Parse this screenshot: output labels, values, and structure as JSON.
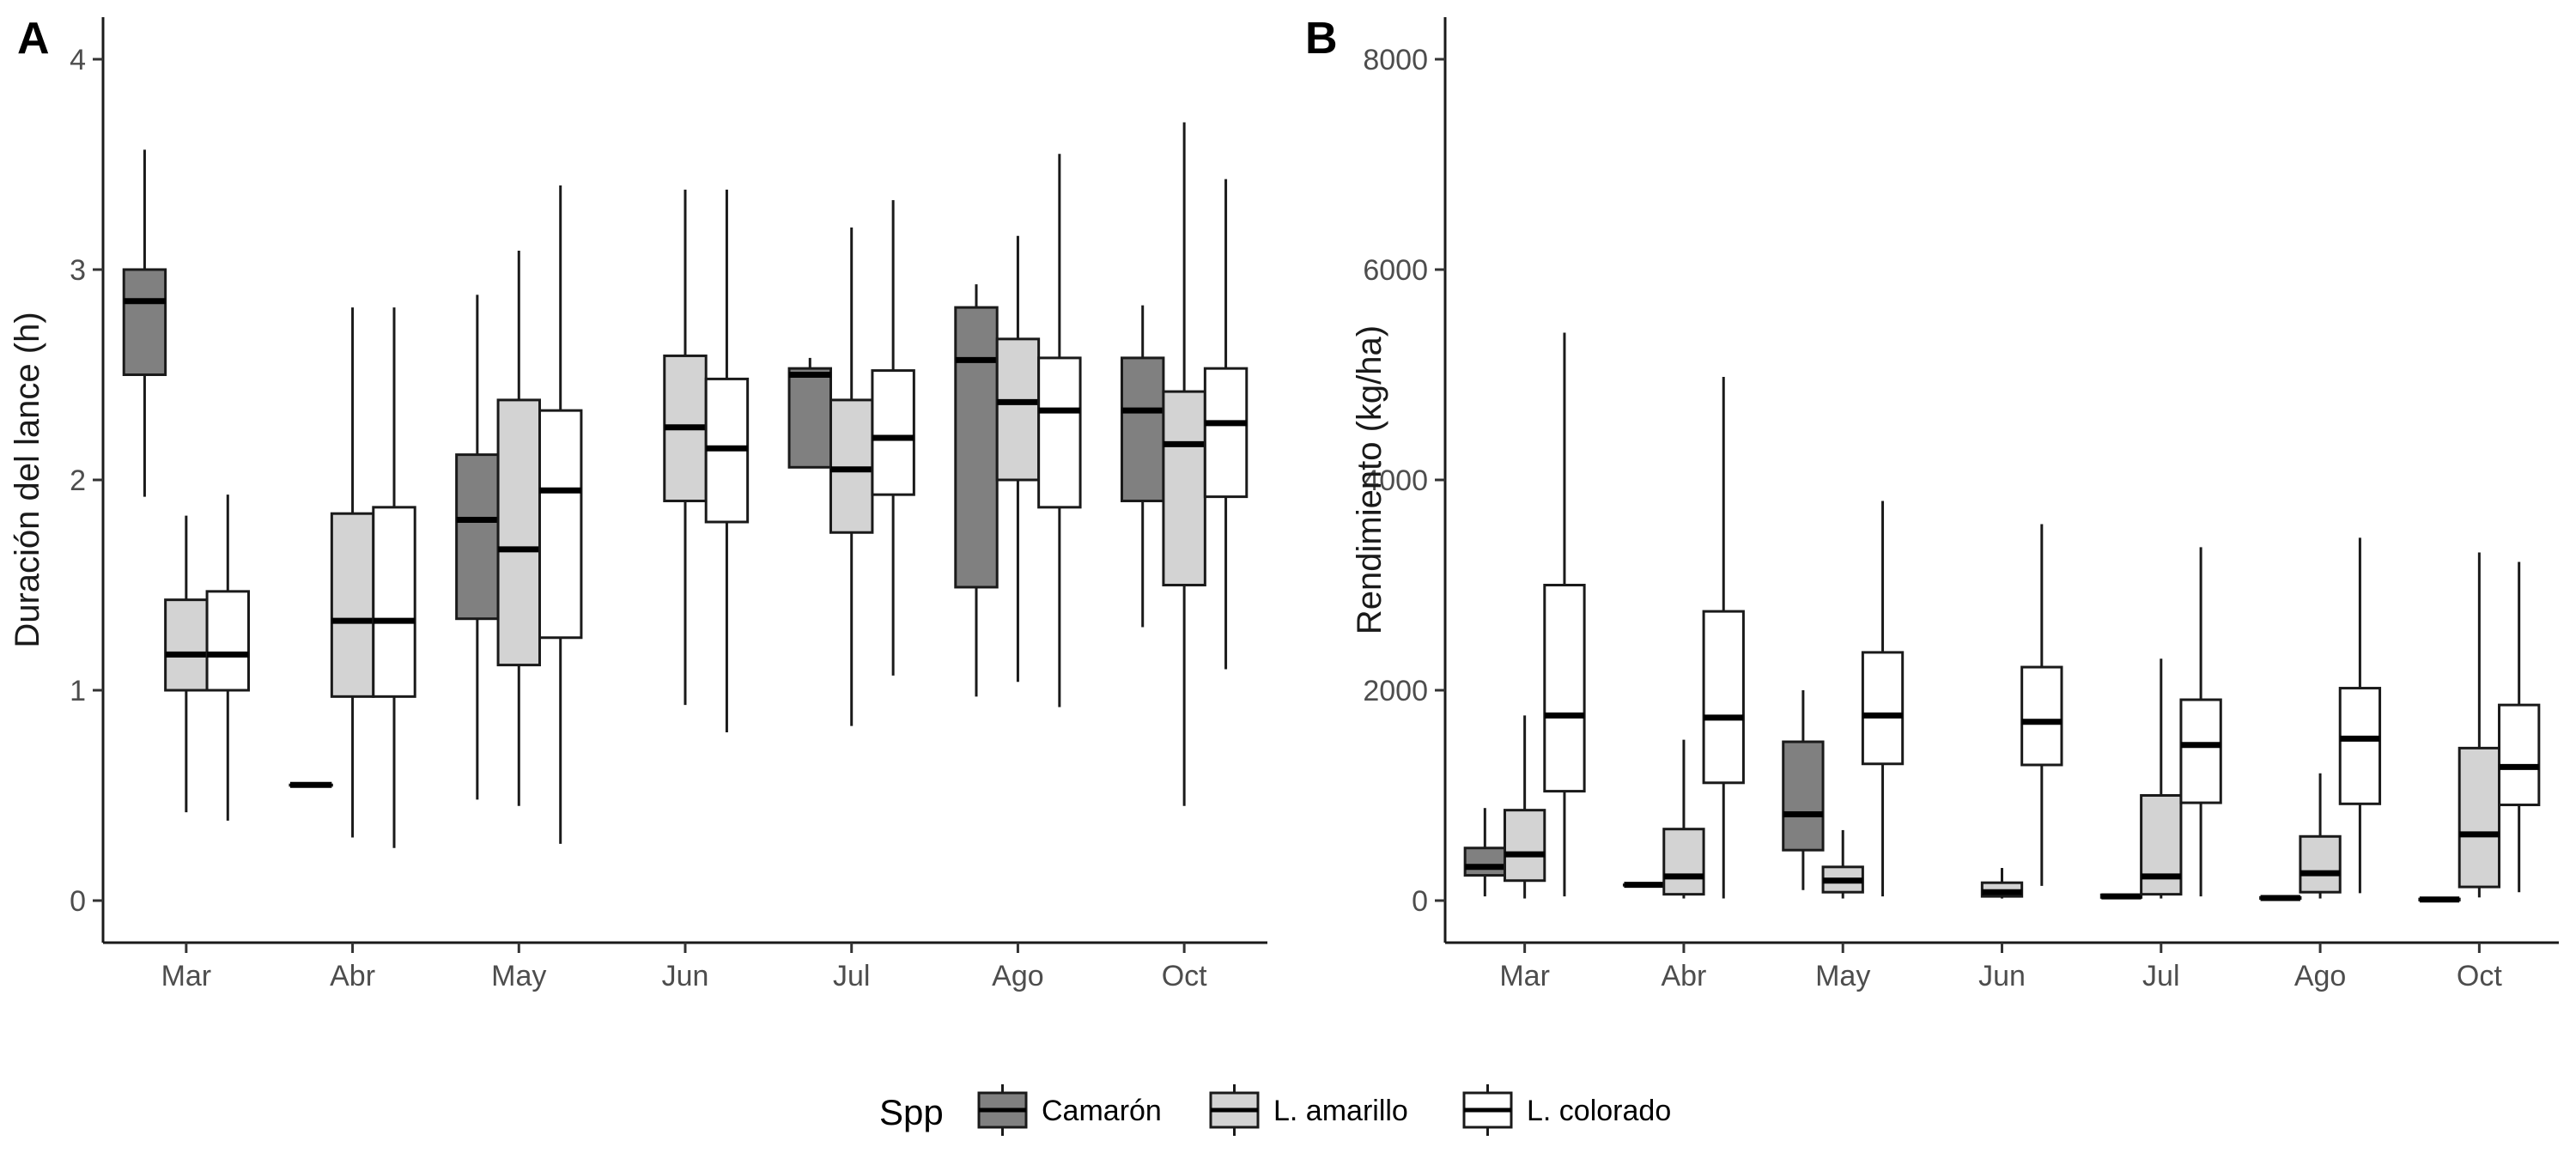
{
  "colors": {
    "Camarón": "#808080",
    "L. amarillo": "#d3d3d3",
    "L. colorado": "#ffffff",
    "outline": "#1a1a1a"
  },
  "legend": {
    "title": "Spp",
    "position": "bottom",
    "entries": [
      "Camarón",
      "L. amarillo",
      "L. colorado"
    ]
  },
  "chart_data": [
    {
      "type": "boxplot",
      "panel": "A",
      "xlabel": "",
      "ylabel": "Duración del lance (h)",
      "ylim": [
        -0.2,
        4.2
      ],
      "yticks": [
        0,
        1,
        2,
        3,
        4
      ],
      "categories": [
        "Mar",
        "Abr",
        "May",
        "Jun",
        "Jul",
        "Ago",
        "Oct"
      ],
      "grid": false,
      "series": [
        {
          "name": "Camarón",
          "boxes": [
            {
              "x": "Mar",
              "min": 1.92,
              "q1": 2.5,
              "median": 2.85,
              "q3": 3.0,
              "max": 3.57
            },
            {
              "x": "Abr",
              "min": 0.55,
              "q1": 0.55,
              "median": 0.55,
              "q3": 0.55,
              "max": 0.55
            },
            {
              "x": "May",
              "min": 0.48,
              "q1": 1.34,
              "median": 1.81,
              "q3": 2.12,
              "max": 2.88
            },
            {
              "x": "Jul",
              "min": 2.06,
              "q1": 2.06,
              "median": 2.5,
              "q3": 2.53,
              "max": 2.58
            },
            {
              "x": "Ago",
              "min": 0.97,
              "q1": 1.49,
              "median": 2.57,
              "q3": 2.82,
              "max": 2.93
            },
            {
              "x": "Oct",
              "min": 1.3,
              "q1": 1.9,
              "median": 2.33,
              "q3": 2.58,
              "max": 2.83
            }
          ]
        },
        {
          "name": "L. amarillo",
          "boxes": [
            {
              "x": "Mar",
              "min": 0.42,
              "q1": 1.0,
              "median": 1.17,
              "q3": 1.43,
              "max": 1.83
            },
            {
              "x": "Abr",
              "min": 0.3,
              "q1": 0.97,
              "median": 1.33,
              "q3": 1.84,
              "max": 2.82
            },
            {
              "x": "May",
              "min": 0.45,
              "q1": 1.12,
              "median": 1.67,
              "q3": 2.38,
              "max": 3.09
            },
            {
              "x": "Jun",
              "min": 0.93,
              "q1": 1.9,
              "median": 2.25,
              "q3": 2.59,
              "max": 3.38
            },
            {
              "x": "Jul",
              "min": 0.83,
              "q1": 1.75,
              "median": 2.05,
              "q3": 2.38,
              "max": 3.2
            },
            {
              "x": "Ago",
              "min": 1.04,
              "q1": 2.0,
              "median": 2.37,
              "q3": 2.67,
              "max": 3.16
            },
            {
              "x": "Oct",
              "min": 0.45,
              "q1": 1.5,
              "median": 2.17,
              "q3": 2.42,
              "max": 3.7
            }
          ]
        },
        {
          "name": "L. colorado",
          "boxes": [
            {
              "x": "Mar",
              "min": 0.38,
              "q1": 1.0,
              "median": 1.17,
              "q3": 1.47,
              "max": 1.93
            },
            {
              "x": "Abr",
              "min": 0.25,
              "q1": 0.97,
              "median": 1.33,
              "q3": 1.87,
              "max": 2.82
            },
            {
              "x": "May",
              "min": 0.27,
              "q1": 1.25,
              "median": 1.95,
              "q3": 2.33,
              "max": 3.4
            },
            {
              "x": "Jun",
              "min": 0.8,
              "q1": 1.8,
              "median": 2.15,
              "q3": 2.48,
              "max": 3.38
            },
            {
              "x": "Jul",
              "min": 1.07,
              "q1": 1.93,
              "median": 2.2,
              "q3": 2.52,
              "max": 3.33
            },
            {
              "x": "Ago",
              "min": 0.92,
              "q1": 1.87,
              "median": 2.33,
              "q3": 2.58,
              "max": 3.55
            },
            {
              "x": "Oct",
              "min": 1.1,
              "q1": 1.92,
              "median": 2.27,
              "q3": 2.53,
              "max": 3.43
            }
          ]
        }
      ]
    },
    {
      "type": "boxplot",
      "panel": "B",
      "xlabel": "",
      "ylabel": "Rendimiento (kg/ha)",
      "ylim": [
        -400,
        8400
      ],
      "yticks": [
        0,
        2000,
        4000,
        6000,
        8000
      ],
      "categories": [
        "Mar",
        "Abr",
        "May",
        "Jun",
        "Jul",
        "Ago",
        "Oct"
      ],
      "grid": false,
      "series": [
        {
          "name": "Camarón",
          "boxes": [
            {
              "x": "Mar",
              "min": 40,
              "q1": 240,
              "median": 320,
              "q3": 500,
              "max": 880
            },
            {
              "x": "Abr",
              "min": 150,
              "q1": 150,
              "median": 150,
              "q3": 150,
              "max": 150
            },
            {
              "x": "May",
              "min": 100,
              "q1": 480,
              "median": 820,
              "q3": 1510,
              "max": 2000
            },
            {
              "x": "Jul",
              "min": 30,
              "q1": 30,
              "median": 40,
              "q3": 55,
              "max": 60
            },
            {
              "x": "Ago",
              "min": 20,
              "q1": 20,
              "median": 25,
              "q3": 30,
              "max": 35
            },
            {
              "x": "Oct",
              "min": 5,
              "q1": 5,
              "median": 10,
              "q3": 15,
              "max": 20
            }
          ]
        },
        {
          "name": "L. amarillo",
          "boxes": [
            {
              "x": "Mar",
              "min": 20,
              "q1": 190,
              "median": 440,
              "q3": 860,
              "max": 1760
            },
            {
              "x": "Abr",
              "min": 20,
              "q1": 60,
              "median": 230,
              "q3": 680,
              "max": 1530
            },
            {
              "x": "May",
              "min": 20,
              "q1": 80,
              "median": 190,
              "q3": 320,
              "max": 670
            },
            {
              "x": "Jun",
              "min": 20,
              "q1": 40,
              "median": 80,
              "q3": 170,
              "max": 310
            },
            {
              "x": "Jul",
              "min": 20,
              "q1": 60,
              "median": 230,
              "q3": 1000,
              "max": 2300
            },
            {
              "x": "Ago",
              "min": 20,
              "q1": 80,
              "median": 260,
              "q3": 610,
              "max": 1210
            },
            {
              "x": "Oct",
              "min": 30,
              "q1": 130,
              "median": 630,
              "q3": 1450,
              "max": 3310
            }
          ]
        },
        {
          "name": "L. colorado",
          "boxes": [
            {
              "x": "Mar",
              "min": 40,
              "q1": 1040,
              "median": 1760,
              "q3": 3000,
              "max": 5400
            },
            {
              "x": "Abr",
              "min": 20,
              "q1": 1120,
              "median": 1740,
              "q3": 2750,
              "max": 4980
            },
            {
              "x": "May",
              "min": 40,
              "q1": 1300,
              "median": 1760,
              "q3": 2360,
              "max": 3800
            },
            {
              "x": "Jun",
              "min": 140,
              "q1": 1290,
              "median": 1700,
              "q3": 2220,
              "max": 3580
            },
            {
              "x": "Jul",
              "min": 40,
              "q1": 930,
              "median": 1480,
              "q3": 1910,
              "max": 3360
            },
            {
              "x": "Ago",
              "min": 70,
              "q1": 920,
              "median": 1540,
              "q3": 2020,
              "max": 3450
            },
            {
              "x": "Oct",
              "min": 80,
              "q1": 910,
              "median": 1270,
              "q3": 1860,
              "max": 3220
            }
          ]
        }
      ]
    }
  ]
}
